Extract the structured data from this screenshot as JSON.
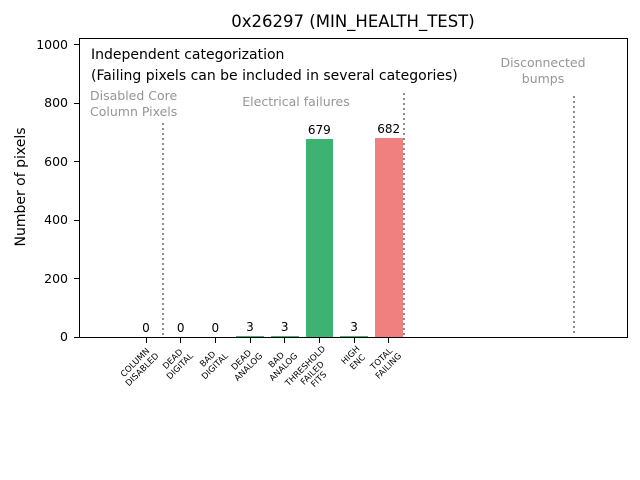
{
  "title": "0x26297 (MIN_HEALTH_TEST)",
  "y_axis_label": "Number of pixels",
  "annotation": {
    "line1": "Independent categorization",
    "line2": "(Failing pixels can be included in several categories)"
  },
  "regions": {
    "disabled_core": "Disabled Core\nColumn Pixels",
    "electrical_failures": "Electrical failures",
    "disconnected_bumps": "Disconnected\nbumps"
  },
  "colors": {
    "bar_green": "#3cb371",
    "bar_red": "#f08080",
    "gray_text": "#959595",
    "separator_gray": "#8c8c8c",
    "axis_black": "#000000"
  },
  "chart_data": {
    "type": "bar",
    "title": "0x26297 (MIN_HEALTH_TEST)",
    "xlabel": "",
    "ylabel": "Number of pixels",
    "ylim": [
      0,
      1023
    ],
    "yticks": [
      0,
      200,
      400,
      600,
      800,
      1000
    ],
    "grid": false,
    "legend": "none",
    "categories": [
      "COLUMN\nDISABLED",
      "DEAD\nDIGITAL",
      "BAD\nDIGITAL",
      "DEAD\nANALOG",
      "BAD\nANALOG",
      "THRESHOLD\nFAILED\nFITS",
      "HIGH\nENC",
      "TOTAL\nFAILING"
    ],
    "values": [
      0,
      0,
      0,
      3,
      3,
      679,
      3,
      682
    ],
    "bar_value_labels": [
      "0",
      "0",
      "0",
      "3",
      "3",
      "679",
      "3",
      "682"
    ],
    "bar_colors": [
      "#3cb371",
      "#3cb371",
      "#3cb371",
      "#3cb371",
      "#3cb371",
      "#3cb371",
      "#3cb371",
      "#f08080"
    ],
    "annotations": [
      "Independent categorization",
      "(Failing pixels can be included in several categories)"
    ],
    "region_labels": [
      "Disabled Core\nColumn Pixels",
      "Electrical failures",
      "Disconnected\nbumps"
    ],
    "separators_x_category_units": [
      0.5,
      7.45,
      12.35
    ]
  }
}
